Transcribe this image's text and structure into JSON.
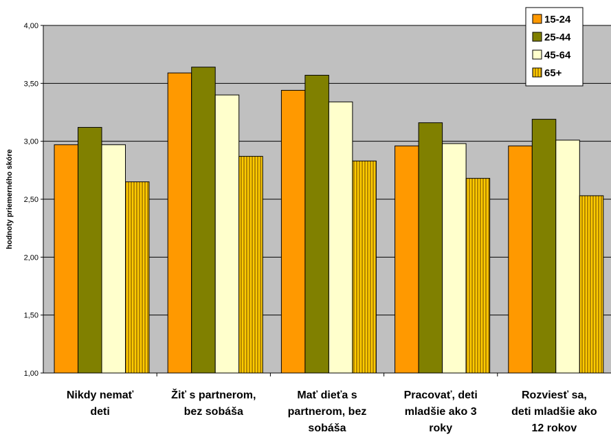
{
  "chart_data": {
    "type": "bar",
    "ylabel": "hodnoty priemerného skóre",
    "ylim": [
      1.0,
      4.0
    ],
    "yticks": [
      "1,00",
      "1,50",
      "2,00",
      "2,50",
      "3,00",
      "3,50",
      "4,00"
    ],
    "ytick_values": [
      1.0,
      1.5,
      2.0,
      2.5,
      3.0,
      3.5,
      4.0
    ],
    "categories": [
      [
        "Nikdy nemať",
        "deti"
      ],
      [
        "Žiť s partnerom,",
        "bez sobáša"
      ],
      [
        "Mať dieťa s",
        "partnerom, bez",
        "sobáša"
      ],
      [
        "Pracovať, deti",
        "mladšie ako 3",
        "roky"
      ],
      [
        "Rozviesť sa,",
        "deti mladšie ako",
        "12 rokov"
      ]
    ],
    "series": [
      {
        "name": "15-24",
        "values": [
          2.97,
          3.59,
          3.44,
          2.96,
          2.96
        ],
        "color": "#ff9900",
        "pattern": "solid"
      },
      {
        "name": "25-44",
        "values": [
          3.12,
          3.64,
          3.57,
          3.16,
          3.19
        ],
        "color": "#808000",
        "pattern": "solid"
      },
      {
        "name": "45-64",
        "values": [
          2.97,
          3.4,
          3.34,
          2.98,
          3.01
        ],
        "color": "#ffffcc",
        "pattern": "solid"
      },
      {
        "name": "65+",
        "values": [
          2.65,
          2.87,
          2.83,
          2.68,
          2.53
        ],
        "color": "#cc9900",
        "pattern": "vertical-stripes"
      }
    ],
    "grid": true,
    "legend_position": "top-right",
    "plot_background": "#c0c0c0"
  }
}
